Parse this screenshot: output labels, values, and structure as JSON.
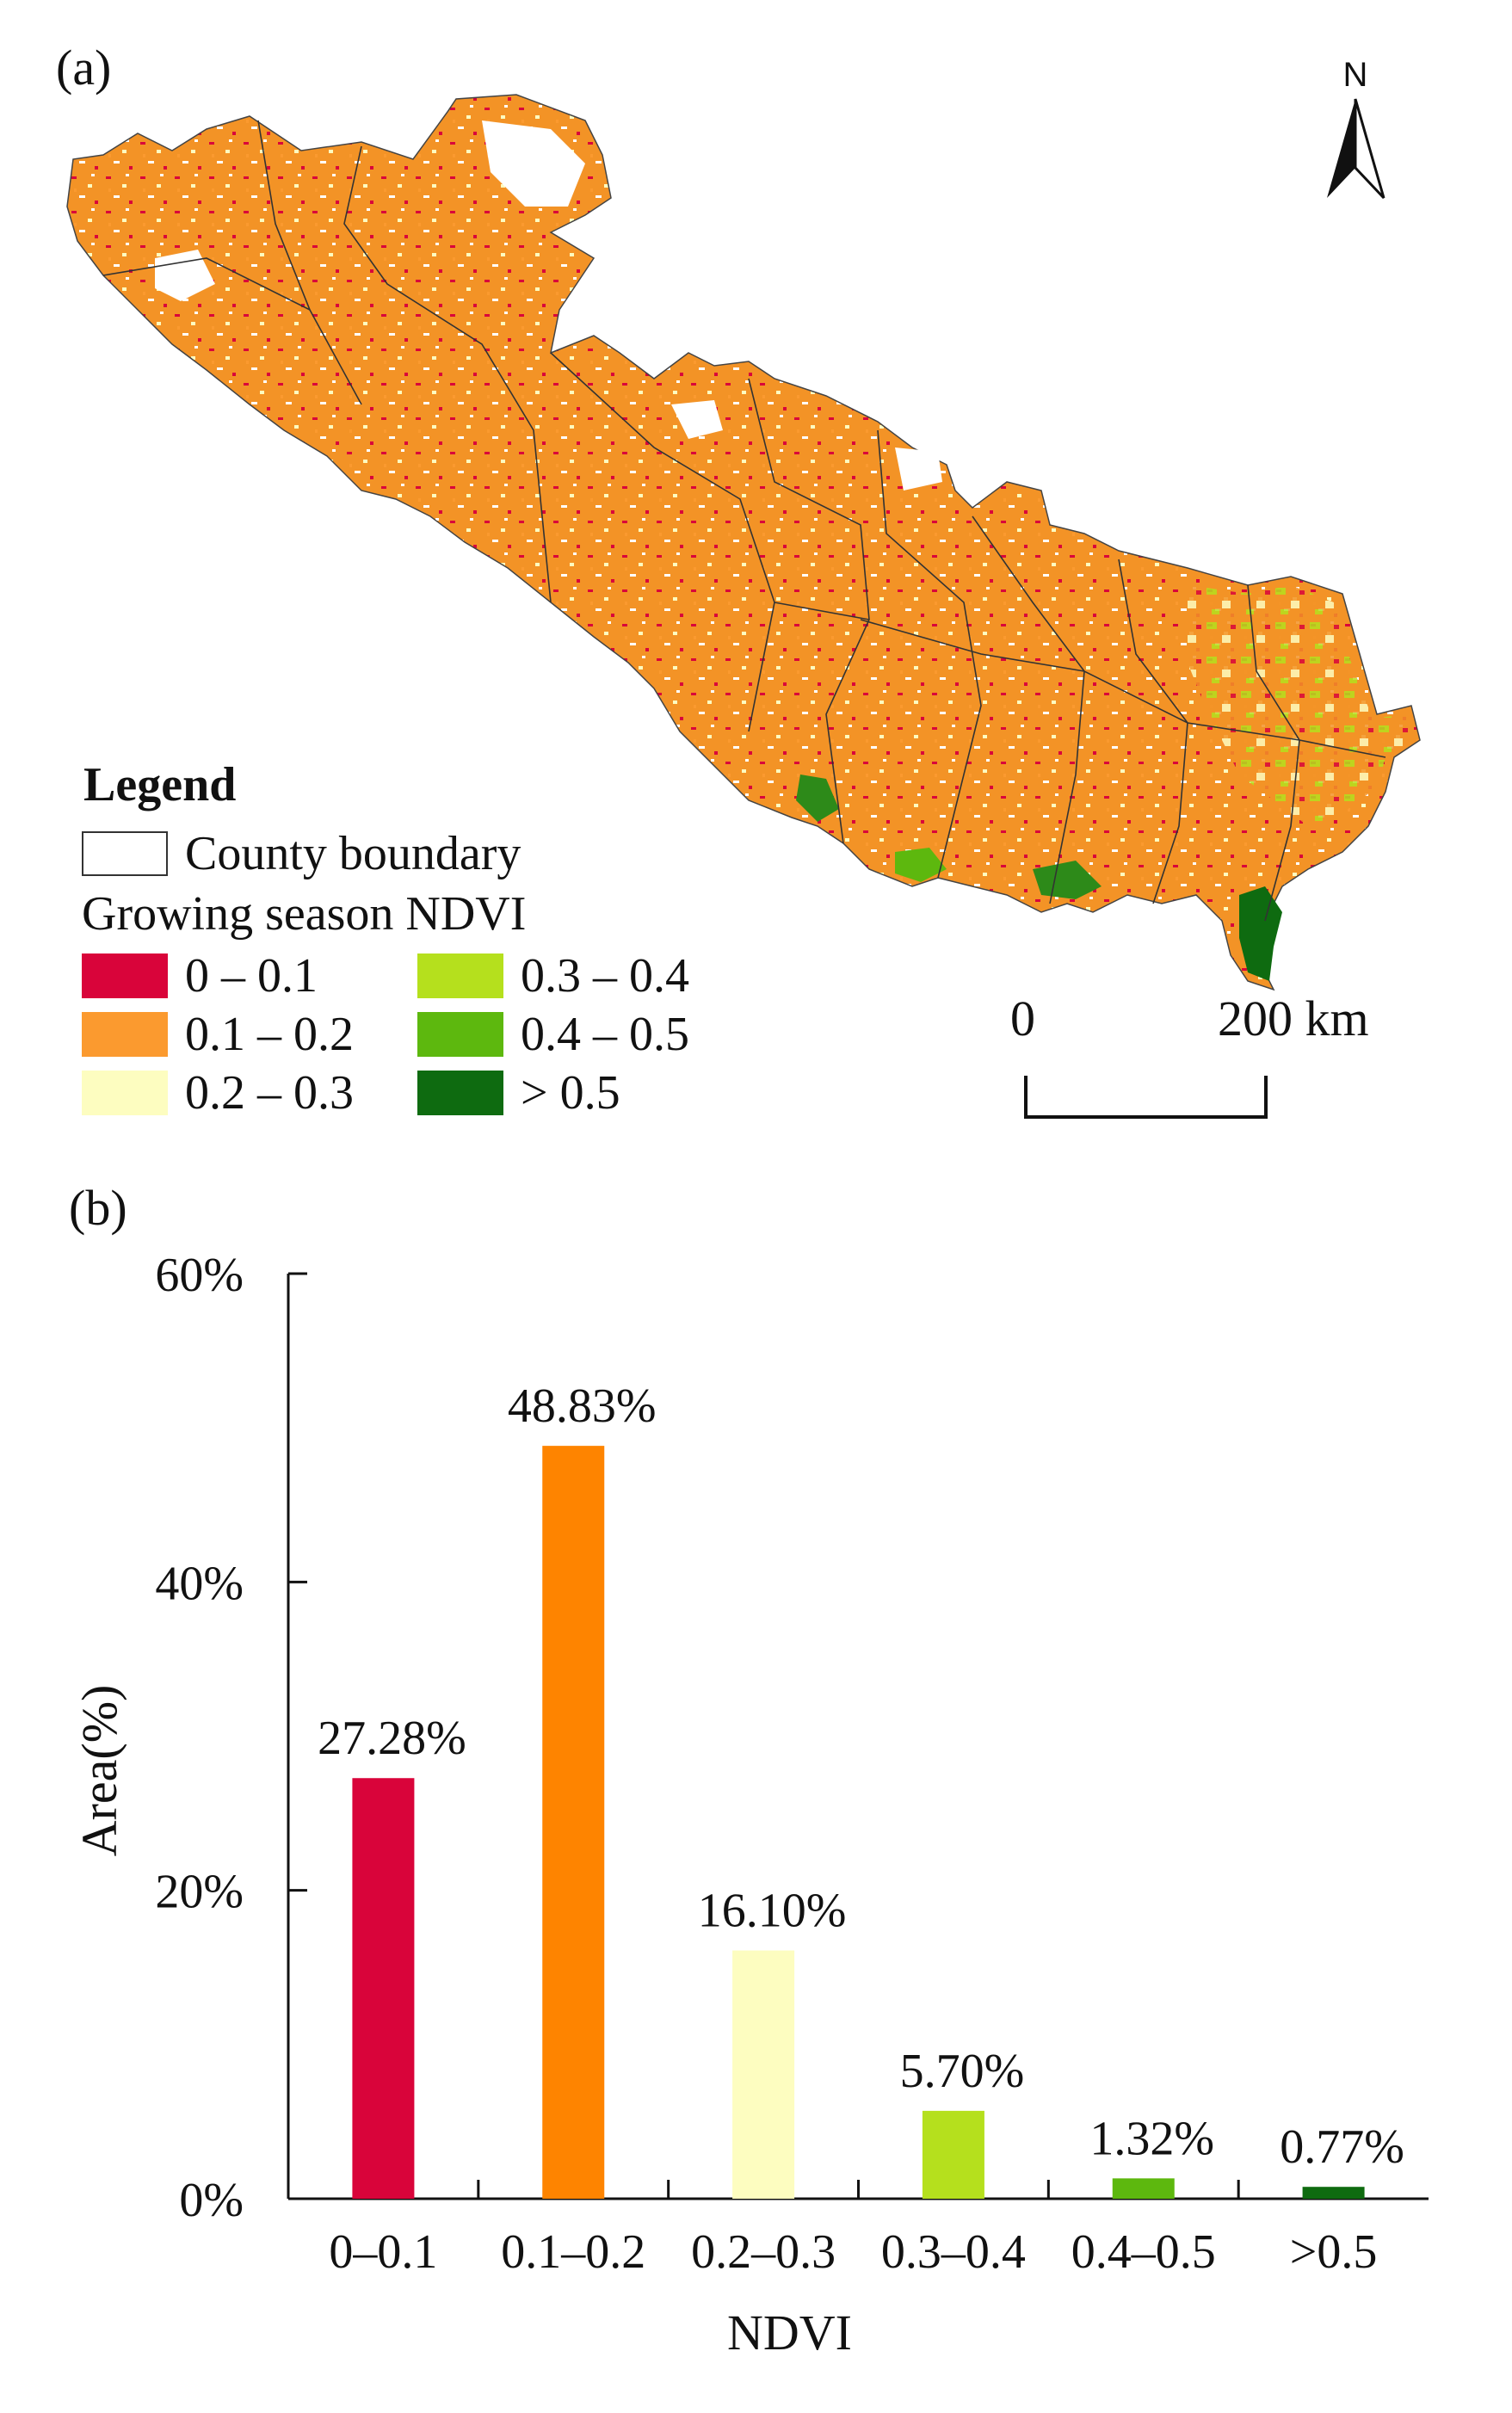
{
  "panel_a": {
    "label": "(a)",
    "north_label": "N",
    "legend": {
      "title": "Legend",
      "boundary_label": "County boundary",
      "ndvi_label": "Growing season NDVI",
      "classes": [
        {
          "label": "0 – 0.1",
          "color": "#d9043a"
        },
        {
          "label": "0.1 – 0.2",
          "color": "#fb9a2f"
        },
        {
          "label": "0.2 – 0.3",
          "color": "#fdfdc0"
        },
        {
          "label": "0.3 – 0.4",
          "color": "#b5e01d"
        },
        {
          "label": "0.4 – 0.5",
          "color": "#5db80e"
        },
        {
          "label": "> 0.5",
          "color": "#0e6b10"
        }
      ]
    },
    "scale": {
      "start": "0",
      "end": "200 km"
    }
  },
  "panel_b": {
    "label": "(b)"
  },
  "chart_data": {
    "type": "bar",
    "categories": [
      "0–0.1",
      "0.1–0.2",
      "0.2–0.3",
      "0.3–0.4",
      "0.4–0.5",
      ">0.5"
    ],
    "values": [
      27.28,
      48.83,
      16.1,
      5.7,
      1.32,
      0.77
    ],
    "data_labels": [
      "27.28%",
      "48.83%",
      "16.10%",
      "5.70%",
      "1.32%",
      "0.77%"
    ],
    "colors": [
      "#d9043a",
      "#fe8400",
      "#fdfdc0",
      "#b5e01d",
      "#5db80e",
      "#0e6b10"
    ],
    "xlabel": "NDVI",
    "ylabel": "Area(%)",
    "ylim": [
      0,
      60
    ],
    "yticks": [
      0,
      20,
      40,
      60
    ],
    "ytick_labels": [
      "0%",
      "20%",
      "40%",
      "60%"
    ],
    "grid": false
  }
}
